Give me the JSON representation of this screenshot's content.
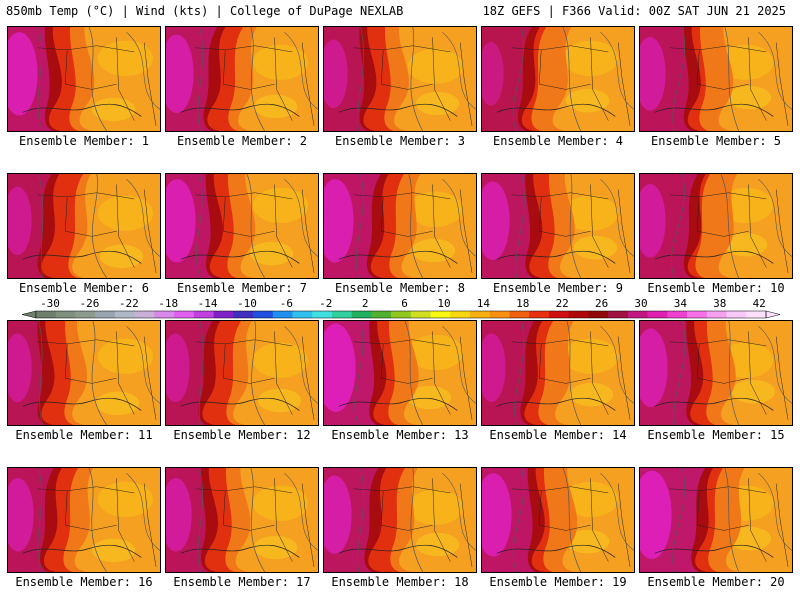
{
  "header": {
    "left": "850mb Temp (°C) | Wind (kts) | College of DuPage NEXLAB",
    "right": "18Z GEFS | F366 Valid: 00Z SAT JUN 21 2025"
  },
  "panels": [
    {
      "label": "Ensemble Member: 1",
      "west_heat": 0.9
    },
    {
      "label": "Ensemble Member: 2",
      "west_heat": 0.8
    },
    {
      "label": "Ensemble Member: 3",
      "west_heat": 0.6
    },
    {
      "label": "Ensemble Member: 4",
      "west_heat": 0.5
    },
    {
      "label": "Ensemble Member: 5",
      "west_heat": 0.7
    },
    {
      "label": "Ensemble Member: 6",
      "west_heat": 0.6
    },
    {
      "label": "Ensemble Member: 7",
      "west_heat": 0.9
    },
    {
      "label": "Ensemble Member: 8",
      "west_heat": 0.9
    },
    {
      "label": "Ensemble Member: 9",
      "west_heat": 0.8
    },
    {
      "label": "Ensemble Member: 10",
      "west_heat": 0.7
    },
    {
      "label": "Ensemble Member: 11",
      "west_heat": 0.6
    },
    {
      "label": "Ensemble Member: 12",
      "west_heat": 0.6
    },
    {
      "label": "Ensemble Member: 13",
      "west_heat": 1.0
    },
    {
      "label": "Ensemble Member: 14",
      "west_heat": 0.6
    },
    {
      "label": "Ensemble Member: 15",
      "west_heat": 0.8
    },
    {
      "label": "Ensemble Member: 16",
      "west_heat": 0.7
    },
    {
      "label": "Ensemble Member: 17",
      "west_heat": 0.7
    },
    {
      "label": "Ensemble Member: 18",
      "west_heat": 0.8
    },
    {
      "label": "Ensemble Member: 19",
      "west_heat": 0.9
    },
    {
      "label": "Ensemble Member: 20",
      "west_heat": 1.0
    }
  ],
  "colorbar": {
    "ticks": [
      "-30",
      "-26",
      "-22",
      "-18",
      "-14",
      "-10",
      "-6",
      "-2",
      "2",
      "6",
      "10",
      "14",
      "18",
      "22",
      "26",
      "30",
      "34",
      "38",
      "42"
    ],
    "colors": [
      "#6e7f6e",
      "#7f8f80",
      "#8f9a8f",
      "#9aa5b0",
      "#b0b8c8",
      "#c8b0d8",
      "#d888e8",
      "#e060f0",
      "#c040e0",
      "#8020c8",
      "#4030c0",
      "#2050e0",
      "#2090f0",
      "#30c0f0",
      "#40e0e0",
      "#30d0a0",
      "#20b060",
      "#50b030",
      "#90c820",
      "#d0e020",
      "#f8f810",
      "#f8d810",
      "#f8b010",
      "#f89010",
      "#f06010",
      "#e83010",
      "#d01010",
      "#b00808",
      "#900808",
      "#a01040",
      "#c01880",
      "#e020b0",
      "#f040d0",
      "#f870e8",
      "#f8a0f0",
      "#f8c8f8",
      "#fce0fc"
    ]
  }
}
